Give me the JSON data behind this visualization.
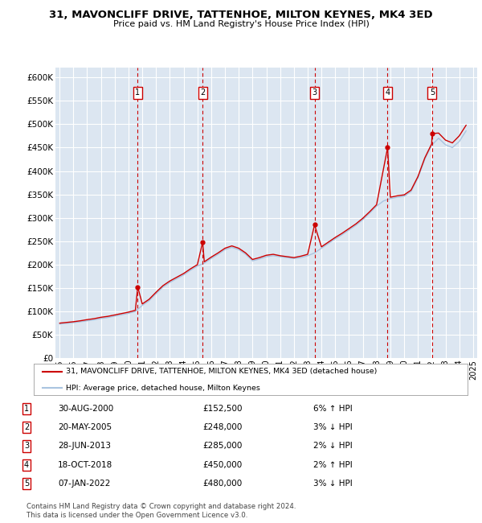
{
  "title": "31, MAVONCLIFF DRIVE, TATTENHOE, MILTON KEYNES, MK4 3ED",
  "subtitle": "Price paid vs. HM Land Registry's House Price Index (HPI)",
  "ylim": [
    0,
    620000
  ],
  "yticks": [
    0,
    50000,
    100000,
    150000,
    200000,
    250000,
    300000,
    350000,
    400000,
    450000,
    500000,
    550000,
    600000
  ],
  "ytick_labels": [
    "£0",
    "£50K",
    "£100K",
    "£150K",
    "£200K",
    "£250K",
    "£300K",
    "£350K",
    "£400K",
    "£450K",
    "£500K",
    "£550K",
    "£600K"
  ],
  "xlim_start": 1994.7,
  "xlim_end": 2025.3,
  "background_color": "#dce6f1",
  "grid_color": "#ffffff",
  "sale_color": "#cc0000",
  "hpi_color": "#aac4e0",
  "sale_label": "31, MAVONCLIFF DRIVE, TATTENHOE, MILTON KEYNES, MK4 3ED (detached house)",
  "hpi_label": "HPI: Average price, detached house, Milton Keynes",
  "transactions": [
    {
      "num": 1,
      "date": "30-AUG-2000",
      "price": 152500,
      "change": "6% ↑ HPI",
      "year": 2000.67
    },
    {
      "num": 2,
      "date": "20-MAY-2005",
      "price": 248000,
      "change": "3% ↓ HPI",
      "year": 2005.38
    },
    {
      "num": 3,
      "date": "28-JUN-2013",
      "price": 285000,
      "change": "2% ↓ HPI",
      "year": 2013.5
    },
    {
      "num": 4,
      "date": "18-OCT-2018",
      "price": 450000,
      "change": "2% ↑ HPI",
      "year": 2018.8
    },
    {
      "num": 5,
      "date": "07-JAN-2022",
      "price": 480000,
      "change": "3% ↓ HPI",
      "year": 2022.03
    }
  ],
  "footer": "Contains HM Land Registry data © Crown copyright and database right 2024.\nThis data is licensed under the Open Government Licence v3.0.",
  "hpi_years": [
    1995.0,
    1995.5,
    1996.0,
    1996.5,
    1997.0,
    1997.5,
    1998.0,
    1998.5,
    1999.0,
    1999.5,
    2000.0,
    2000.5,
    2001.0,
    2001.5,
    2002.0,
    2002.5,
    2003.0,
    2003.5,
    2004.0,
    2004.5,
    2005.0,
    2005.5,
    2006.0,
    2006.5,
    2007.0,
    2007.5,
    2008.0,
    2008.5,
    2009.0,
    2009.5,
    2010.0,
    2010.5,
    2011.0,
    2011.5,
    2012.0,
    2012.5,
    2013.0,
    2013.5,
    2014.0,
    2014.5,
    2015.0,
    2015.5,
    2016.0,
    2016.5,
    2017.0,
    2017.5,
    2018.0,
    2018.5,
    2019.0,
    2019.5,
    2020.0,
    2020.5,
    2021.0,
    2021.5,
    2022.0,
    2022.5,
    2023.0,
    2023.5,
    2024.0,
    2024.5
  ],
  "hpi_values": [
    73000,
    74500,
    76000,
    78000,
    80000,
    82000,
    85000,
    87000,
    90000,
    93000,
    96000,
    100000,
    113000,
    123000,
    138000,
    152000,
    162000,
    170000,
    178000,
    188000,
    197000,
    203000,
    213000,
    222000,
    232000,
    237000,
    232000,
    222000,
    208000,
    212000,
    217000,
    219000,
    217000,
    215000,
    213000,
    215000,
    219000,
    225000,
    235000,
    245000,
    255000,
    264000,
    274000,
    284000,
    296000,
    310000,
    325000,
    336000,
    341000,
    344000,
    346000,
    356000,
    385000,
    425000,
    455000,
    470000,
    456000,
    450000,
    463000,
    486000
  ],
  "sale_years": [
    1995.0,
    1995.5,
    1996.0,
    1996.5,
    1997.0,
    1997.5,
    1998.0,
    1998.5,
    1999.0,
    1999.5,
    2000.0,
    2000.5,
    2000.67,
    2001.0,
    2001.5,
    2002.0,
    2002.5,
    2003.0,
    2003.5,
    2004.0,
    2004.5,
    2005.0,
    2005.38,
    2005.5,
    2006.0,
    2006.5,
    2007.0,
    2007.5,
    2008.0,
    2008.5,
    2009.0,
    2009.5,
    2010.0,
    2010.5,
    2011.0,
    2011.5,
    2012.0,
    2012.5,
    2013.0,
    2013.5,
    2014.0,
    2014.5,
    2015.0,
    2015.5,
    2016.0,
    2016.5,
    2017.0,
    2017.5,
    2018.0,
    2018.8,
    2019.0,
    2019.5,
    2020.0,
    2020.5,
    2021.0,
    2021.5,
    2022.0,
    2022.03,
    2022.5,
    2023.0,
    2023.5,
    2024.0,
    2024.5
  ],
  "sale_values": [
    75000,
    76500,
    78000,
    80000,
    82500,
    84500,
    87500,
    89500,
    92500,
    95500,
    98500,
    102500,
    152500,
    116000,
    126000,
    141000,
    155000,
    165000,
    173000,
    181000,
    191000,
    200000,
    248000,
    206000,
    216000,
    225000,
    235000,
    240000,
    235000,
    225000,
    211000,
    215000,
    220000,
    222000,
    219000,
    217000,
    215000,
    218000,
    222000,
    285000,
    238000,
    248000,
    258000,
    267000,
    277000,
    287000,
    299000,
    313000,
    328000,
    450000,
    344000,
    347000,
    349000,
    359000,
    388000,
    428000,
    458000,
    480000,
    481000,
    466000,
    460000,
    475000,
    498000
  ]
}
